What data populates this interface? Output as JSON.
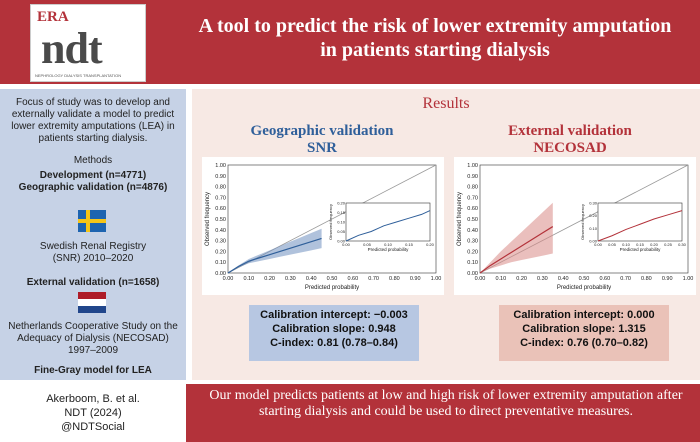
{
  "header": {
    "logo_era": "ERA",
    "logo_ndt": "ndt",
    "logo_sub": "NEPHROLOGY DIALYSIS TRANSPLANTATION",
    "title": "A tool to predict the risk of lower extremity amputation in patients starting dialysis"
  },
  "left": {
    "focus": "Focus of study was to develop and externally validate a model to predict lower extremity amputations (LEA) in patients starting dialysis.",
    "methods": "Methods",
    "development": "Development (n=4771)",
    "geographic": "Geographic validation (n=4876)",
    "snr": "Swedish Renal Registry (SNR) 2010–2020",
    "external": "External validation (n=1658)",
    "necosad": "Netherlands Cooperative Study on the Adequacy of Dialysis (NECOSAD) 1997–2009",
    "finegray": "Fine-Gray model for LEA"
  },
  "results": {
    "heading": "Results",
    "geo_title_1": "Geographic validation",
    "geo_title_2": "SNR",
    "ext_title_1": "External validation",
    "ext_title_2": "NECOSAD",
    "geo_stats": {
      "intercept": "Calibration intercept: −0.003",
      "slope": "Calibration slope: 0.948",
      "cindex": "C-index: 0.81 (0.78–0.84)"
    },
    "ext_stats": {
      "intercept": "Calibration intercept: 0.000",
      "slope": "Calibration slope: 1.315",
      "cindex": "C-index: 0.76 (0.70–0.82)"
    }
  },
  "footer": {
    "author": "Akerboom, B. et al.",
    "journal": "NDT (2024)",
    "social": "@NDTSocial",
    "conclusion": "Our model predicts patients at low and high risk of lower extremity amputation after starting dialysis and could be used to direct preventative measures."
  },
  "colors": {
    "brand_red": "#b3323a",
    "geo_blue": "#2f5f9a",
    "ext_red": "#b3323a"
  },
  "chart_data": [
    {
      "type": "line",
      "title": "Geographic validation SNR",
      "xlabel": "Predicted probability",
      "ylabel": "Observed frequency",
      "xlim": [
        0,
        1
      ],
      "ylim": [
        0,
        1
      ],
      "x_ticks": [
        "0.00",
        "0.10",
        "0.20",
        "0.30",
        "0.40",
        "0.50",
        "0.60",
        "0.70",
        "0.80",
        "0.90",
        "1.00"
      ],
      "y_ticks": [
        "0.00",
        "0.10",
        "0.20",
        "0.30",
        "0.40",
        "0.50",
        "0.60",
        "0.70",
        "0.80",
        "0.90",
        "1.00"
      ],
      "series": [
        {
          "name": "calibration",
          "x": [
            0.0,
            0.05,
            0.1,
            0.15,
            0.2,
            0.25,
            0.3,
            0.35,
            0.4,
            0.45
          ],
          "y": [
            0.0,
            0.06,
            0.11,
            0.14,
            0.17,
            0.2,
            0.23,
            0.26,
            0.29,
            0.32
          ],
          "lower": [
            0.0,
            0.05,
            0.09,
            0.11,
            0.13,
            0.15,
            0.17,
            0.19,
            0.21,
            0.23
          ],
          "upper": [
            0.0,
            0.07,
            0.13,
            0.17,
            0.21,
            0.25,
            0.29,
            0.33,
            0.37,
            0.41
          ]
        },
        {
          "name": "ideal",
          "x": [
            0,
            1
          ],
          "y": [
            0,
            1
          ]
        }
      ],
      "inset": {
        "xlabel": "Predicted probability",
        "ylabel": "Observed frequency",
        "x_ticks": [
          "0.00",
          "0.05",
          "0.10",
          "0.15",
          "0.20"
        ],
        "y_ticks": [
          "0.00",
          "0.05",
          "0.10",
          "0.15",
          "0.20"
        ],
        "x": [
          0.0,
          0.03,
          0.06,
          0.09,
          0.12,
          0.15,
          0.18,
          0.2
        ],
        "y": [
          0.0,
          0.03,
          0.05,
          0.08,
          0.1,
          0.12,
          0.14,
          0.16
        ]
      }
    },
    {
      "type": "line",
      "title": "External validation NECOSAD",
      "xlabel": "Predicted probability",
      "ylabel": "Observed frequency",
      "xlim": [
        0,
        1
      ],
      "ylim": [
        0,
        1
      ],
      "x_ticks": [
        "0.00",
        "0.10",
        "0.20",
        "0.30",
        "0.40",
        "0.50",
        "0.60",
        "0.70",
        "0.80",
        "0.90",
        "1.00"
      ],
      "y_ticks": [
        "0.00",
        "0.10",
        "0.20",
        "0.30",
        "0.40",
        "0.50",
        "0.60",
        "0.70",
        "0.80",
        "0.90",
        "1.00"
      ],
      "series": [
        {
          "name": "calibration",
          "x": [
            0.0,
            0.05,
            0.1,
            0.15,
            0.2,
            0.25,
            0.3,
            0.35
          ],
          "y": [
            0.0,
            0.07,
            0.13,
            0.19,
            0.25,
            0.31,
            0.37,
            0.43
          ],
          "lower": [
            0.0,
            0.04,
            0.07,
            0.1,
            0.12,
            0.14,
            0.16,
            0.18
          ],
          "upper": [
            0.0,
            0.1,
            0.2,
            0.29,
            0.38,
            0.47,
            0.56,
            0.65
          ]
        },
        {
          "name": "ideal",
          "x": [
            0,
            1
          ],
          "y": [
            0,
            1
          ]
        }
      ],
      "inset": {
        "xlabel": "Predicted probability",
        "ylabel": "Observed frequency",
        "x_ticks": [
          "0.00",
          "0.05",
          "0.10",
          "0.15",
          "0.20",
          "0.25",
          "0.30"
        ],
        "y_ticks": [
          "0.00",
          "0.10",
          "0.20",
          "0.30"
        ],
        "x": [
          0.0,
          0.05,
          0.1,
          0.15,
          0.2,
          0.25,
          0.3
        ],
        "y": [
          0.0,
          0.05,
          0.11,
          0.16,
          0.21,
          0.25,
          0.29
        ]
      }
    }
  ]
}
